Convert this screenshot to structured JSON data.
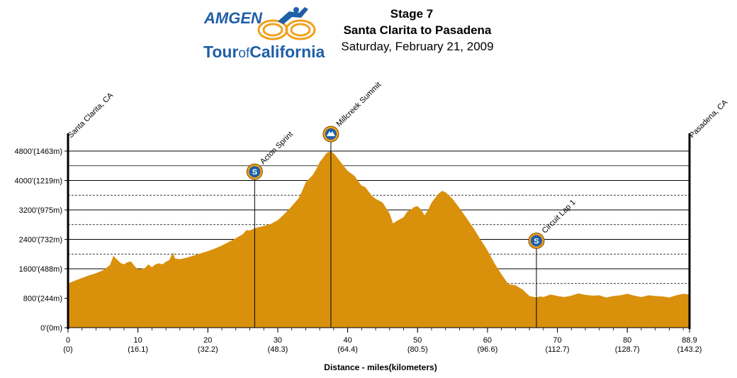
{
  "logo": {
    "line1": "AMGEN",
    "line2_a": "Tour",
    "line2_b": "of",
    "line2_c": "California",
    "colors": {
      "blue": "#1f5fa8",
      "orange": "#f2a01c"
    }
  },
  "header": {
    "stage": "Stage 7",
    "route": "Santa Clarita to Pasadena",
    "date": "Saturday, February 21, 2009"
  },
  "chart_data": {
    "type": "area",
    "xlabel": "Distance - miles(kilometers)",
    "xlim": [
      0,
      88.9
    ],
    "ylim": [
      0,
      4800
    ],
    "fill_color": "#d9900b",
    "grid": true,
    "x_ticks": [
      {
        "miles": "0",
        "km": "(0)",
        "value": 0
      },
      {
        "miles": "10",
        "km": "(16.1)",
        "value": 10
      },
      {
        "miles": "20",
        "km": "(32.2)",
        "value": 20
      },
      {
        "miles": "30",
        "km": "(48.3)",
        "value": 30
      },
      {
        "miles": "40",
        "km": "(64.4)",
        "value": 40
      },
      {
        "miles": "50",
        "km": "(80.5)",
        "value": 50
      },
      {
        "miles": "60",
        "km": "(96.6)",
        "value": 60
      },
      {
        "miles": "70",
        "km": "(112.7)",
        "value": 70
      },
      {
        "miles": "80",
        "km": "(128.7)",
        "value": 80
      },
      {
        "miles": "88.9",
        "km": "(143.2)",
        "value": 88.9
      }
    ],
    "y_ticks": [
      {
        "label": "0'(0m)",
        "value": 0
      },
      {
        "label": "800'(244m)",
        "value": 800
      },
      {
        "label": "1600'(488m)",
        "value": 1600
      },
      {
        "label": "2400'(732m)",
        "value": 2400
      },
      {
        "label": "3200'(975m)",
        "value": 3200
      },
      {
        "label": "4000'(1219m)",
        "value": 4000
      },
      {
        "label": "4800'(1463m)",
        "value": 4800
      }
    ],
    "places": [
      {
        "name": "Santa Clarita, CA",
        "x": 0
      },
      {
        "name": "Pasadena, CA",
        "x": 88.9
      }
    ],
    "points_of_interest": [
      {
        "name": "Acton Sprint",
        "x": 26.7,
        "kind": "sprint",
        "symbol": "S"
      },
      {
        "name": "Millcreek Summit",
        "x": 37.6,
        "kind": "summit",
        "symbol": ""
      },
      {
        "name": "Circuit Lap 1",
        "x": 67.0,
        "kind": "sprint",
        "symbol": "S"
      }
    ],
    "profile": [
      [
        0,
        1200
      ],
      [
        1,
        1280
      ],
      [
        2,
        1350
      ],
      [
        3,
        1420
      ],
      [
        4,
        1480
      ],
      [
        5,
        1560
      ],
      [
        6,
        1700
      ],
      [
        6.5,
        1950
      ],
      [
        7,
        1850
      ],
      [
        7.5,
        1760
      ],
      [
        8,
        1720
      ],
      [
        8.5,
        1780
      ],
      [
        9,
        1800
      ],
      [
        9.5,
        1680
      ],
      [
        10,
        1580
      ],
      [
        11,
        1620
      ],
      [
        11.5,
        1720
      ],
      [
        12,
        1640
      ],
      [
        12.5,
        1720
      ],
      [
        13,
        1750
      ],
      [
        13.5,
        1720
      ],
      [
        14,
        1790
      ],
      [
        14.5,
        1840
      ],
      [
        15,
        2050
      ],
      [
        15.3,
        1880
      ],
      [
        16,
        1860
      ],
      [
        17,
        1900
      ],
      [
        18,
        1960
      ],
      [
        19,
        2020
      ],
      [
        20,
        2080
      ],
      [
        21,
        2150
      ],
      [
        22,
        2230
      ],
      [
        23,
        2330
      ],
      [
        24,
        2430
      ],
      [
        25,
        2540
      ],
      [
        25.5,
        2650
      ],
      [
        26,
        2640
      ],
      [
        27,
        2720
      ],
      [
        28,
        2760
      ],
      [
        29,
        2820
      ],
      [
        30,
        2920
      ],
      [
        31,
        3100
      ],
      [
        32,
        3300
      ],
      [
        33,
        3520
      ],
      [
        33.5,
        3720
      ],
      [
        34,
        3950
      ],
      [
        35,
        4150
      ],
      [
        35.5,
        4300
      ],
      [
        36,
        4500
      ],
      [
        36.5,
        4620
      ],
      [
        37,
        4750
      ],
      [
        37.6,
        4800
      ],
      [
        38.2,
        4700
      ],
      [
        39,
        4500
      ],
      [
        40,
        4260
      ],
      [
        41,
        4120
      ],
      [
        41.5,
        3980
      ],
      [
        42,
        3860
      ],
      [
        42.5,
        3820
      ],
      [
        43,
        3700
      ],
      [
        43.5,
        3580
      ],
      [
        44,
        3500
      ],
      [
        45,
        3400
      ],
      [
        45.5,
        3250
      ],
      [
        46,
        3100
      ],
      [
        46.5,
        2830
      ],
      [
        47,
        2900
      ],
      [
        48,
        3000
      ],
      [
        48.5,
        3150
      ],
      [
        49,
        3200
      ],
      [
        49.5,
        3280
      ],
      [
        50,
        3300
      ],
      [
        50.5,
        3210
      ],
      [
        51,
        3050
      ],
      [
        51.5,
        3200
      ],
      [
        52,
        3400
      ],
      [
        52.5,
        3520
      ],
      [
        53,
        3640
      ],
      [
        53.5,
        3720
      ],
      [
        54,
        3680
      ],
      [
        55,
        3500
      ],
      [
        56,
        3250
      ],
      [
        57,
        2980
      ],
      [
        58,
        2700
      ],
      [
        59,
        2400
      ],
      [
        60,
        2100
      ],
      [
        61,
        1750
      ],
      [
        62,
        1450
      ],
      [
        63,
        1180
      ],
      [
        64,
        1150
      ],
      [
        65,
        1040
      ],
      [
        66,
        860
      ],
      [
        67,
        820
      ],
      [
        67.5,
        850
      ],
      [
        68,
        830
      ],
      [
        69,
        900
      ],
      [
        70,
        860
      ],
      [
        71,
        830
      ],
      [
        72,
        870
      ],
      [
        73,
        930
      ],
      [
        74,
        890
      ],
      [
        75,
        870
      ],
      [
        76,
        880
      ],
      [
        77,
        820
      ],
      [
        78,
        860
      ],
      [
        79,
        880
      ],
      [
        80,
        920
      ],
      [
        81,
        870
      ],
      [
        82,
        830
      ],
      [
        83,
        880
      ],
      [
        84,
        860
      ],
      [
        85,
        850
      ],
      [
        86,
        820
      ],
      [
        87,
        880
      ],
      [
        88,
        920
      ],
      [
        88.9,
        900
      ]
    ]
  }
}
